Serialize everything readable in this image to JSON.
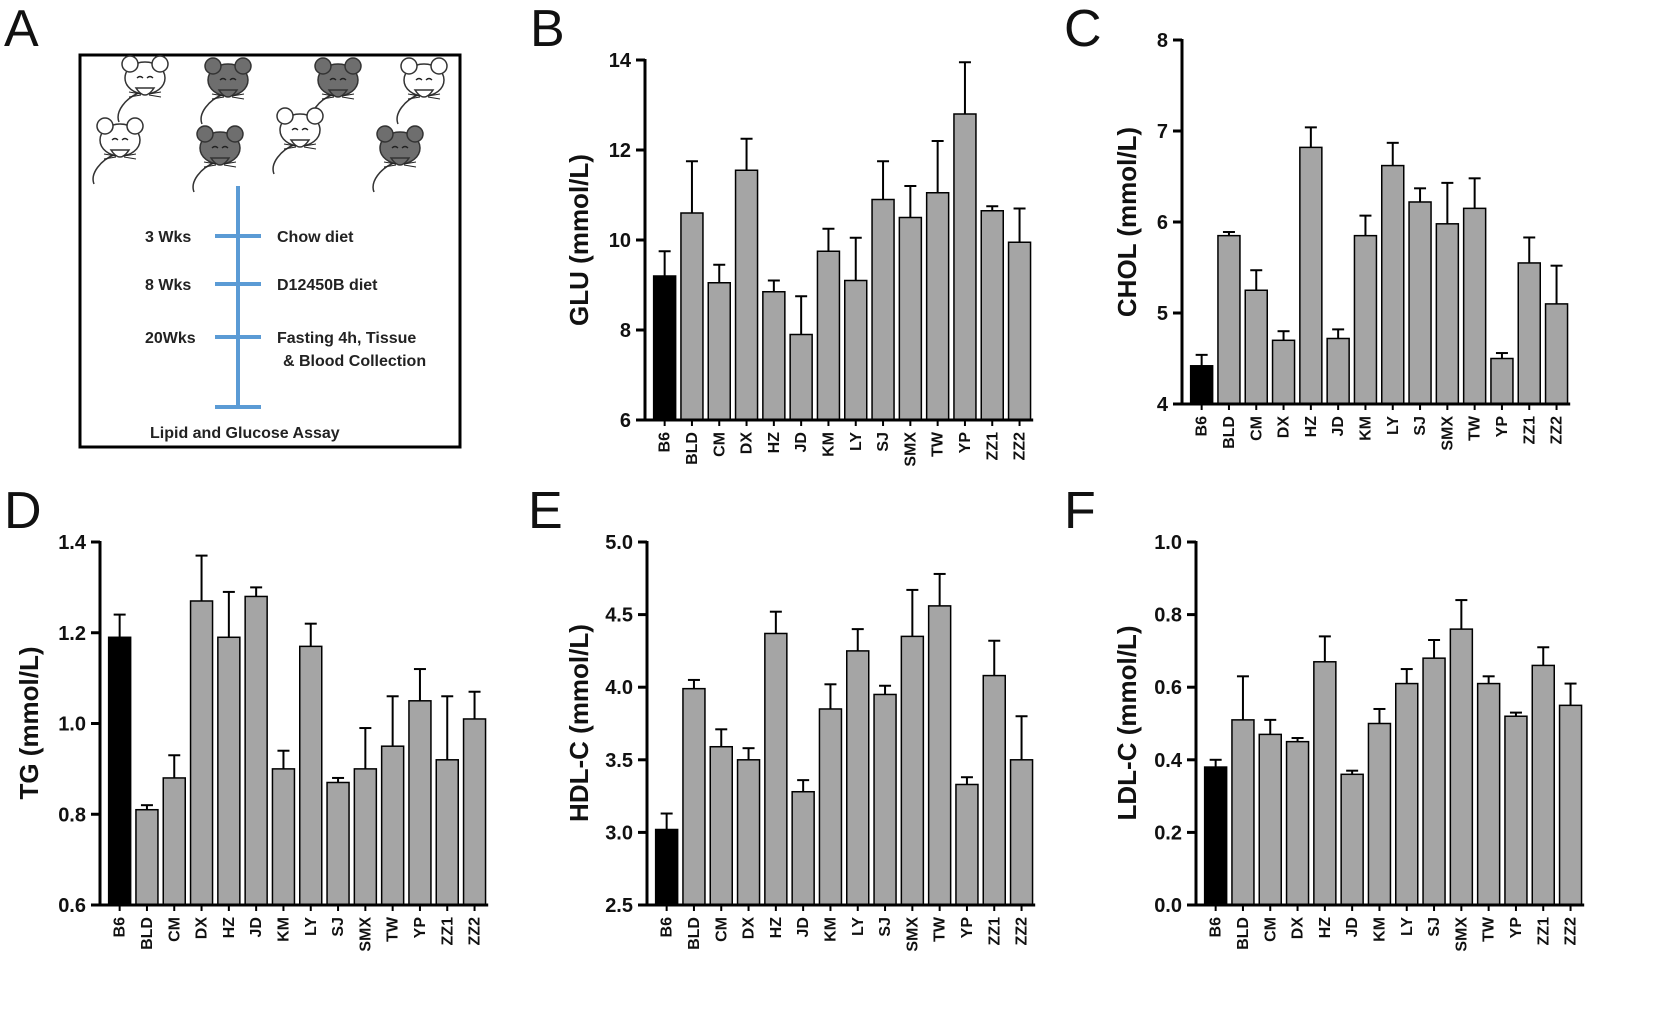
{
  "colors": {
    "control_bar": "#000000",
    "strain_bar": "#a5a5a5",
    "timeline": "#5b9bd5",
    "mouse_dark": "#6e6e6e",
    "mouse_light": "#ffffff"
  },
  "schematic": {
    "panel_label": "A",
    "mice": [
      "white-mouse",
      "dark-mouse",
      "dark-mouse",
      "white-mouse",
      "white-mouse",
      "dark-mouse",
      "white-mouse",
      "dark-mouse"
    ],
    "timeline": [
      {
        "time": "3 Wks",
        "event": "Chow diet",
        "event2": ""
      },
      {
        "time": "8 Wks",
        "event": "D12450B diet",
        "event2": ""
      },
      {
        "time": "20Wks",
        "event": "Fasting 4h, Tissue",
        "event2": "& Blood Collection"
      }
    ],
    "end_label": "Lipid and Glucose Assay"
  },
  "chart_data": [
    {
      "panel": "B",
      "type": "bar",
      "ylabel": "GLU (mmol/L)",
      "ylim": [
        6,
        14
      ],
      "yticks": [
        "6",
        "8",
        "10",
        "12",
        "14"
      ],
      "categories": [
        "B6",
        "BLD",
        "CM",
        "DX",
        "HZ",
        "JD",
        "KM",
        "LY",
        "SJ",
        "SMX",
        "TW",
        "YP",
        "ZZ1",
        "ZZ2"
      ],
      "values": [
        9.2,
        10.6,
        9.05,
        11.55,
        8.85,
        7.9,
        9.75,
        9.1,
        10.9,
        10.5,
        11.05,
        12.8,
        10.65,
        9.95
      ],
      "errors": [
        0.55,
        1.15,
        0.4,
        0.7,
        0.25,
        0.85,
        0.5,
        0.95,
        0.85,
        0.7,
        1.15,
        1.15,
        0.1,
        0.75
      ]
    },
    {
      "panel": "C",
      "type": "bar",
      "ylabel": "CHOL (mmol/L)",
      "ylim": [
        4,
        8
      ],
      "yticks": [
        "4",
        "5",
        "6",
        "7",
        "8"
      ],
      "categories": [
        "B6",
        "BLD",
        "CM",
        "DX",
        "HZ",
        "JD",
        "KM",
        "LY",
        "SJ",
        "SMX",
        "TW",
        "YP",
        "ZZ1",
        "ZZ2"
      ],
      "values": [
        4.42,
        5.85,
        5.25,
        4.7,
        6.82,
        4.72,
        5.85,
        6.62,
        6.22,
        5.98,
        6.15,
        4.5,
        5.55,
        5.1
      ],
      "errors": [
        0.12,
        0.04,
        0.22,
        0.1,
        0.22,
        0.1,
        0.22,
        0.25,
        0.15,
        0.45,
        0.33,
        0.06,
        0.28,
        0.42
      ]
    },
    {
      "panel": "D",
      "type": "bar",
      "ylabel": "TG (mmol/L)",
      "ylim": [
        0.6,
        1.4
      ],
      "yticks": [
        "0.6",
        "0.8",
        "1.0",
        "1.2",
        "1.4"
      ],
      "categories": [
        "B6",
        "BLD",
        "CM",
        "DX",
        "HZ",
        "JD",
        "KM",
        "LY",
        "SJ",
        "SMX",
        "TW",
        "YP",
        "ZZ1",
        "ZZ2"
      ],
      "values": [
        1.19,
        0.81,
        0.88,
        1.27,
        1.19,
        1.28,
        0.9,
        1.17,
        0.87,
        0.9,
        0.95,
        1.05,
        0.92,
        1.01
      ],
      "errors": [
        0.05,
        0.01,
        0.05,
        0.1,
        0.1,
        0.02,
        0.04,
        0.05,
        0.01,
        0.09,
        0.11,
        0.07,
        0.14,
        0.06
      ]
    },
    {
      "panel": "E",
      "type": "bar",
      "ylabel": "HDL-C (mmol/L)",
      "ylim": [
        2.5,
        5.0
      ],
      "yticks": [
        "2.5",
        "3.0",
        "3.5",
        "4.0",
        "4.5",
        "5.0"
      ],
      "categories": [
        "B6",
        "BLD",
        "CM",
        "DX",
        "HZ",
        "JD",
        "KM",
        "LY",
        "SJ",
        "SMX",
        "TW",
        "YP",
        "ZZ1",
        "ZZ2"
      ],
      "values": [
        3.02,
        3.99,
        3.59,
        3.5,
        4.37,
        3.28,
        3.85,
        4.25,
        3.95,
        4.35,
        4.56,
        3.33,
        4.08,
        3.5
      ],
      "errors": [
        0.11,
        0.06,
        0.12,
        0.08,
        0.15,
        0.08,
        0.17,
        0.15,
        0.06,
        0.32,
        0.22,
        0.05,
        0.24,
        0.3
      ]
    },
    {
      "panel": "F",
      "type": "bar",
      "ylabel": "LDL-C (mmol/L)",
      "ylim": [
        0.0,
        1.0
      ],
      "yticks": [
        "0.0",
        "0.2",
        "0.4",
        "0.6",
        "0.8",
        "1.0"
      ],
      "categories": [
        "B6",
        "BLD",
        "CM",
        "DX",
        "HZ",
        "JD",
        "KM",
        "LY",
        "SJ",
        "SMX",
        "TW",
        "YP",
        "ZZ1",
        "ZZ2"
      ],
      "values": [
        0.38,
        0.51,
        0.47,
        0.45,
        0.67,
        0.36,
        0.5,
        0.61,
        0.68,
        0.76,
        0.61,
        0.52,
        0.66,
        0.55
      ],
      "errors": [
        0.02,
        0.12,
        0.04,
        0.01,
        0.07,
        0.01,
        0.04,
        0.04,
        0.05,
        0.08,
        0.02,
        0.01,
        0.05,
        0.06
      ]
    }
  ]
}
